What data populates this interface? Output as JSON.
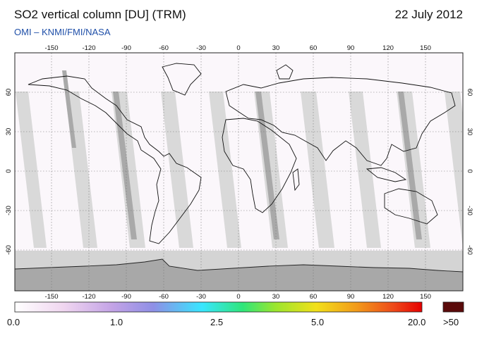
{
  "header": {
    "title": "SO2 vertical column [DU] (TRM)",
    "date": "22 July 2012",
    "credit": "OMI  –  KNMI/FMI/NASA"
  },
  "map": {
    "lon_ticks": [
      "-150",
      "-120",
      "-90",
      "-60",
      "-30",
      "0",
      "30",
      "60",
      "90",
      "120",
      "150"
    ],
    "lat_ticks": [
      "60",
      "30",
      "0",
      "-30",
      "-60"
    ]
  },
  "colorbar": {
    "labels": [
      "0.0",
      "1.0",
      "2.5",
      "5.0",
      "20.0"
    ],
    "overflow_label": ">50",
    "colors": [
      "#ffffff",
      "#f0d6f0",
      "#c3a3e6",
      "#8f8fe6",
      "#38e6ff",
      "#2ee67a",
      "#9be62e",
      "#f2e01a",
      "#f29a1a",
      "#ee4a1a",
      "#e60000"
    ],
    "overflow_color": "#5a0a0a"
  }
}
